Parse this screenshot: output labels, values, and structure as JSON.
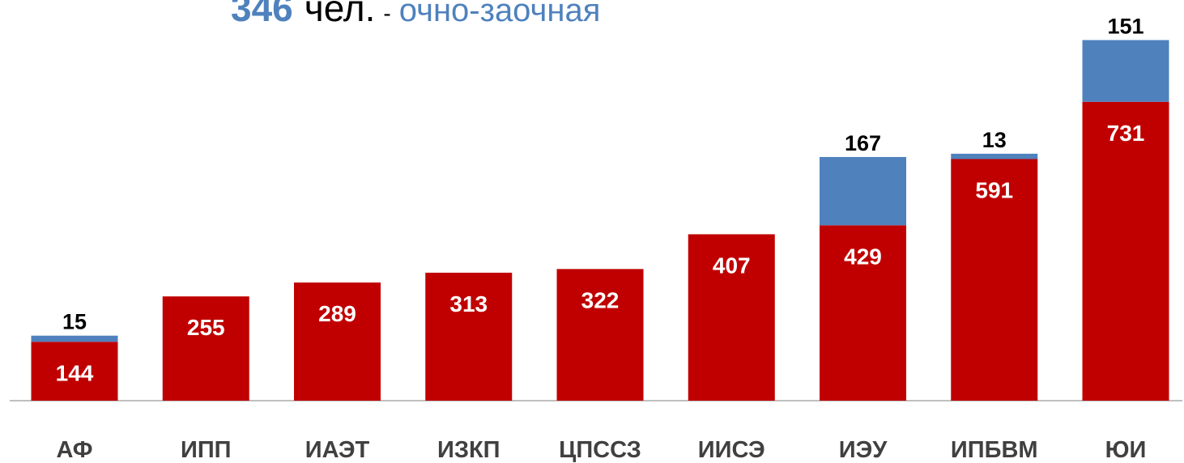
{
  "chart_data": {
    "type": "stacked_bar",
    "title_parts": [
      "346",
      "чел.",
      "-",
      "очно-заочная"
    ],
    "categories": [
      "АФ",
      "ИПП",
      "ИАЭТ",
      "ИЗКП",
      "ЦПССЗ",
      "ИИСЭ",
      "ИЭУ",
      "ИПБВМ",
      "ЮИ"
    ],
    "series": [
      {
        "color": "#c00000",
        "values": [
          144,
          255,
          289,
          313,
          322,
          407,
          429,
          591,
          731
        ]
      },
      {
        "color": "#4f81bd",
        "values": [
          15,
          null,
          null,
          null,
          null,
          null,
          167,
          13,
          151
        ]
      }
    ],
    "ylim": [
      0,
      980
    ]
  }
}
